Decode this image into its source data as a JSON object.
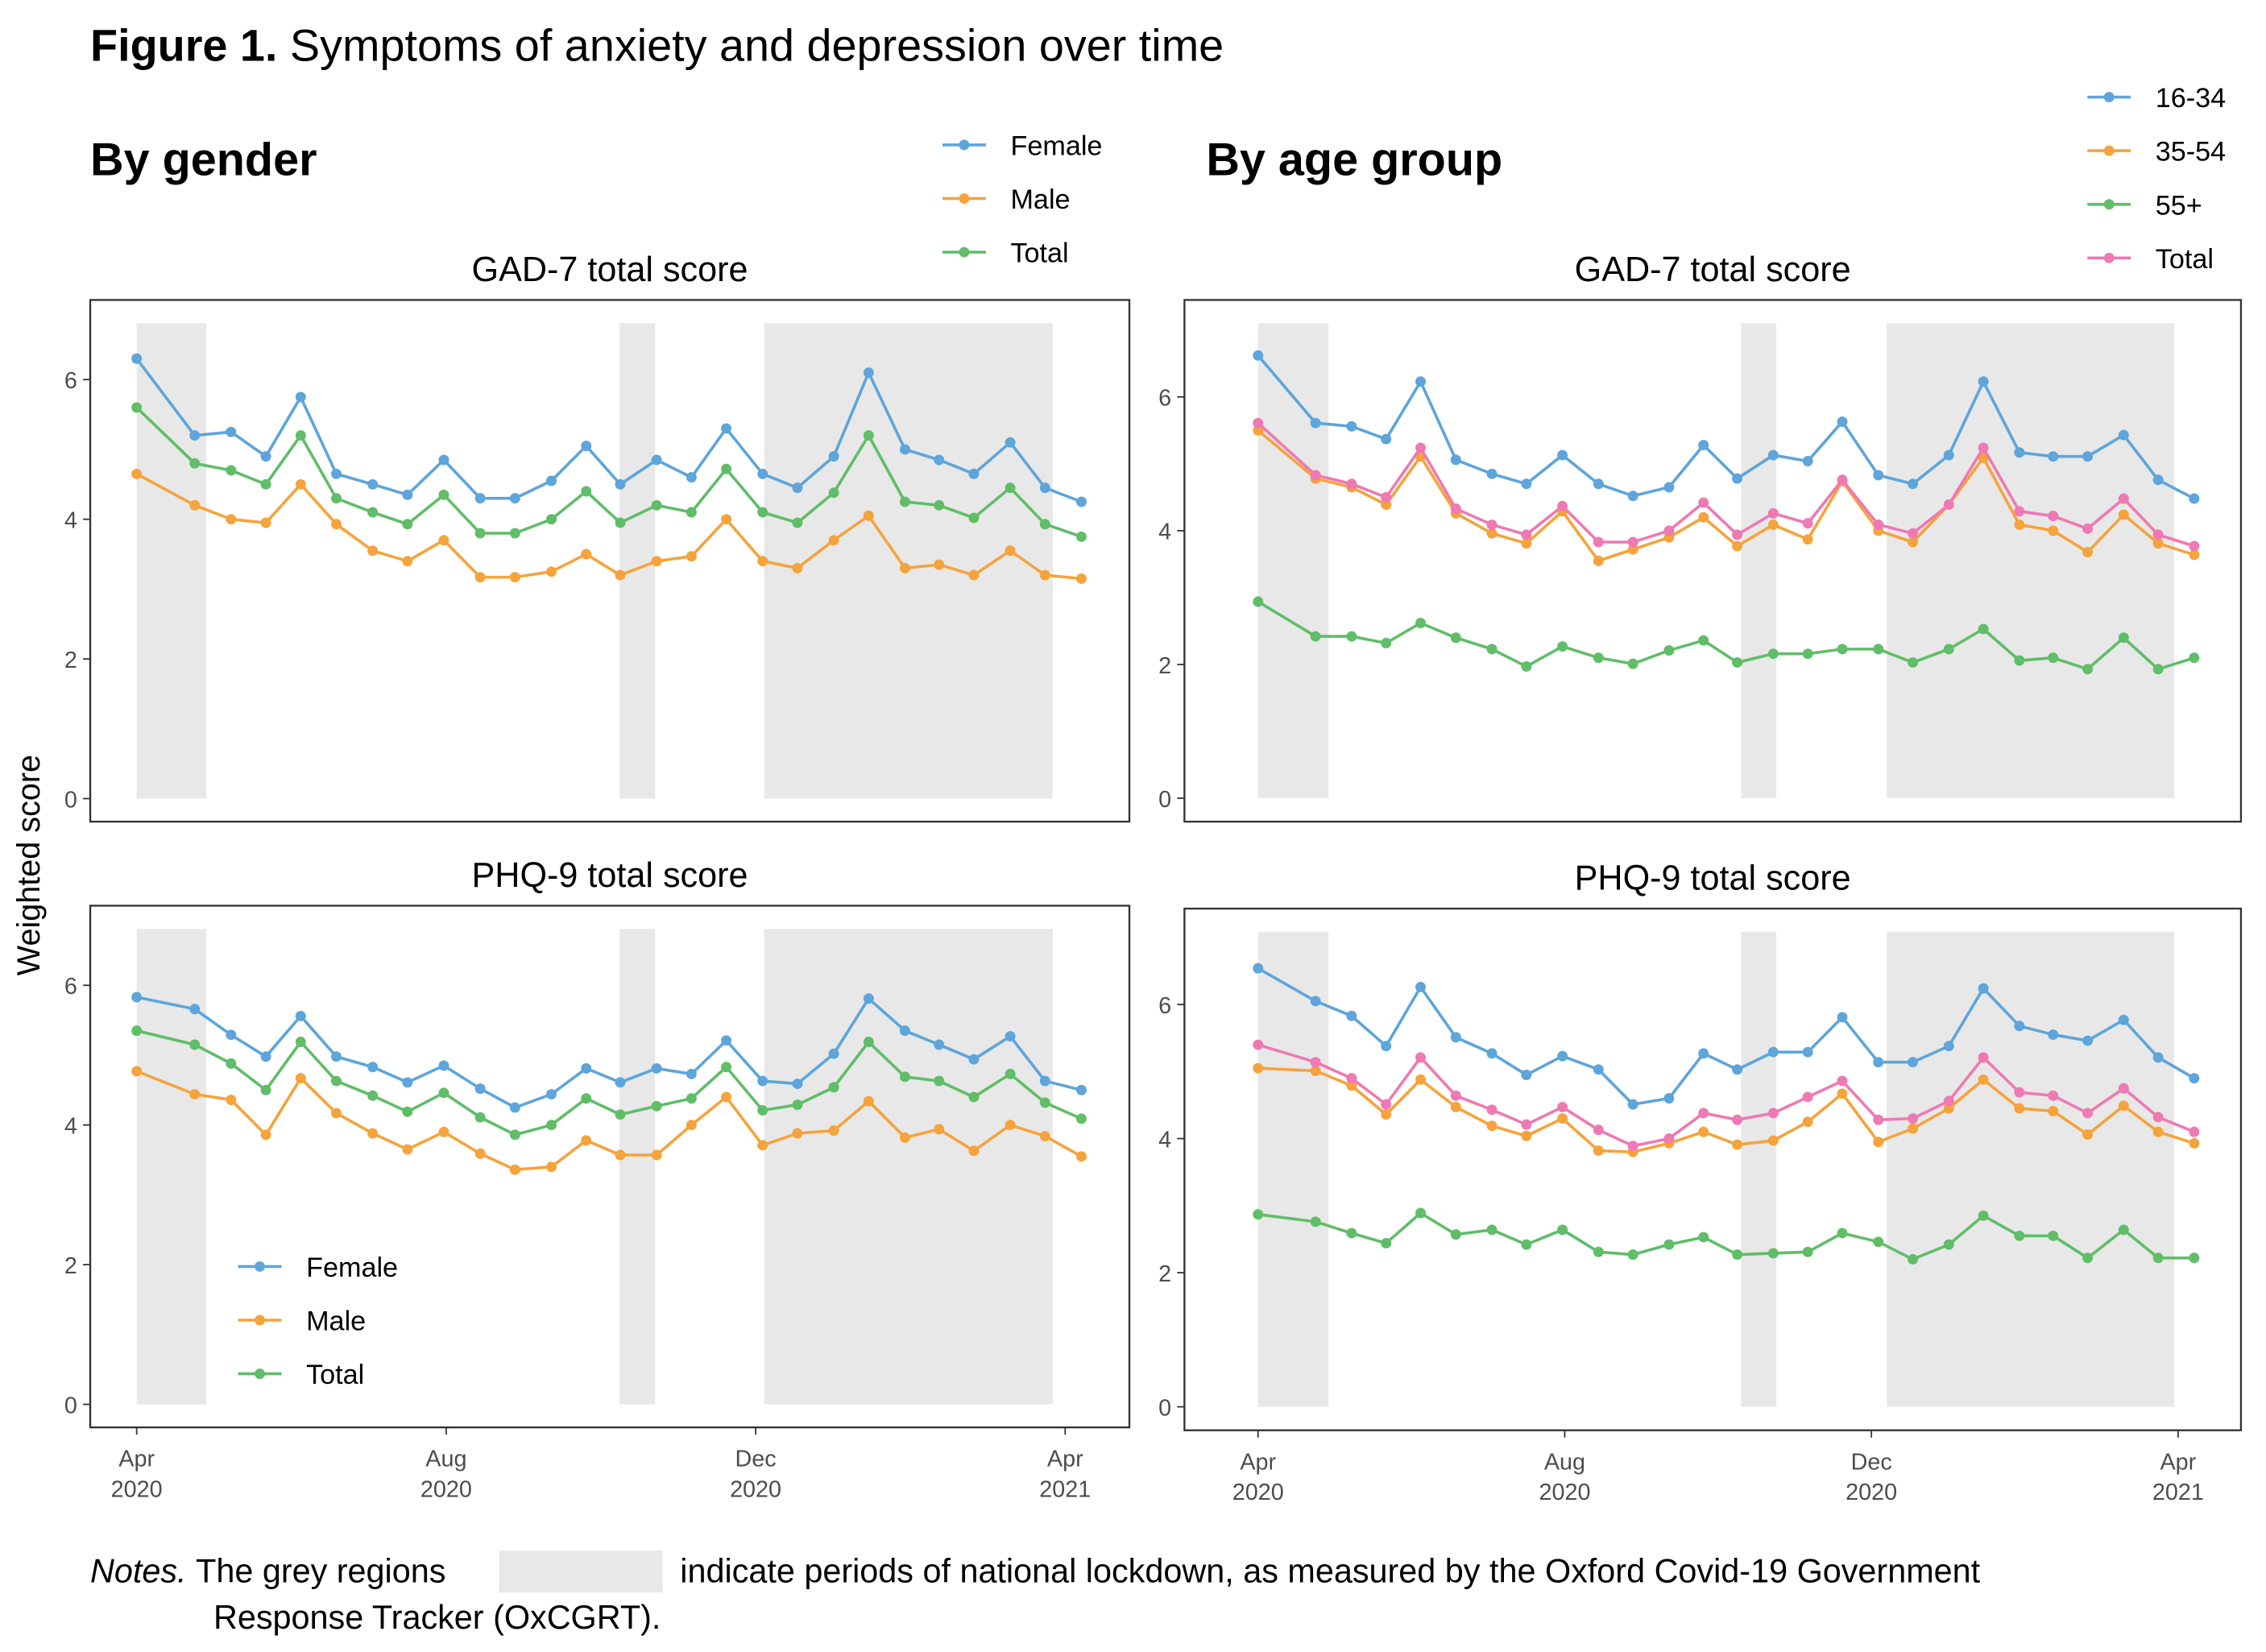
{
  "figure": {
    "label": "Figure 1.",
    "title": "Symptoms of anxiety and depression over time",
    "ylabel": "Weighted score"
  },
  "sections": [
    "By gender",
    "By age group"
  ],
  "notes": {
    "label": "Notes.",
    "before": "The grey regions",
    "after": "indicate periods of national lockdown, as measured by the Oxford Covid-19 Government",
    "line2": "Response Tracker (OxCGRT)."
  },
  "chart_data": [
    {
      "type": "line",
      "title": "GAD-7 total score",
      "legend": "top",
      "x": [
        0,
        0.75,
        1.22,
        1.67,
        2.12,
        2.58,
        3.05,
        3.5,
        3.97,
        4.44,
        4.89,
        5.36,
        5.81,
        6.25,
        6.72,
        7.17,
        7.62,
        8.09,
        8.54,
        9.01,
        9.46,
        9.93,
        10.37,
        10.82,
        11.29,
        11.74,
        12.21
      ],
      "xlim": [
        -0.6,
        12.83
      ],
      "ylim": [
        -0.33,
        7.14
      ],
      "yticks": [
        0,
        2,
        4,
        6
      ],
      "lockdowns": [
        [
          0,
          0.9
        ],
        [
          6.24,
          6.7
        ],
        [
          8.11,
          11.84
        ]
      ],
      "lockdown_color": "#e8e8e8",
      "series": [
        {
          "name": "Female",
          "color": "#5da5da",
          "values": [
            6.3,
            5.2,
            5.25,
            4.9,
            5.75,
            4.65,
            4.5,
            4.35,
            4.85,
            4.3,
            4.3,
            4.55,
            5.05,
            4.5,
            4.85,
            4.6,
            5.3,
            4.65,
            4.45,
            4.9,
            6.1,
            5.0,
            4.85,
            4.65,
            5.1,
            4.45,
            4.25
          ]
        },
        {
          "name": "Male",
          "color": "#f5a33c",
          "values": [
            4.65,
            4.2,
            4.0,
            3.95,
            4.5,
            3.93,
            3.55,
            3.4,
            3.7,
            3.17,
            3.17,
            3.25,
            3.5,
            3.2,
            3.4,
            3.47,
            4.0,
            3.4,
            3.3,
            3.7,
            4.05,
            3.3,
            3.35,
            3.2,
            3.55,
            3.2,
            3.15
          ]
        },
        {
          "name": "Total",
          "color": "#60bd68",
          "values": [
            5.6,
            4.8,
            4.7,
            4.5,
            5.2,
            4.3,
            4.1,
            3.93,
            4.35,
            3.8,
            3.8,
            4.0,
            4.4,
            3.95,
            4.2,
            4.1,
            4.72,
            4.1,
            3.95,
            4.38,
            5.2,
            4.25,
            4.2,
            4.02,
            4.45,
            3.93,
            3.75
          ]
        }
      ]
    },
    {
      "type": "line",
      "title": "PHQ-9 total score",
      "legend": "bottom-left",
      "x": [
        0,
        0.75,
        1.22,
        1.67,
        2.12,
        2.58,
        3.05,
        3.5,
        3.97,
        4.44,
        4.89,
        5.36,
        5.81,
        6.25,
        6.72,
        7.17,
        7.62,
        8.09,
        8.54,
        9.01,
        9.46,
        9.93,
        10.37,
        10.82,
        11.29,
        11.74,
        12.21
      ],
      "xlim": [
        -0.6,
        12.83
      ],
      "ylim": [
        -0.33,
        7.14
      ],
      "yticks": [
        0,
        2,
        4,
        6
      ],
      "xticks": [
        {
          "value": 0,
          "label": "Apr 2020"
        },
        {
          "value": 4,
          "label": "Aug 2020"
        },
        {
          "value": 8,
          "label": "Dec 2020"
        },
        {
          "value": 12,
          "label": "Apr 2021"
        }
      ],
      "lockdowns": [
        [
          0,
          0.9
        ],
        [
          6.24,
          6.7
        ],
        [
          8.11,
          11.84
        ]
      ],
      "lockdown_color": "#e8e8e8",
      "series": [
        {
          "name": "Female",
          "color": "#5da5da",
          "values": [
            5.83,
            5.66,
            5.29,
            4.98,
            5.56,
            4.98,
            4.83,
            4.61,
            4.85,
            4.52,
            4.25,
            4.44,
            4.81,
            4.61,
            4.81,
            4.73,
            5.21,
            4.63,
            4.59,
            5.02,
            5.81,
            5.35,
            5.15,
            4.94,
            5.27,
            4.63,
            4.5
          ]
        },
        {
          "name": "Male",
          "color": "#f5a33c",
          "values": [
            4.77,
            4.44,
            4.36,
            3.86,
            4.67,
            4.17,
            3.88,
            3.65,
            3.9,
            3.59,
            3.36,
            3.4,
            3.78,
            3.57,
            3.57,
            4.0,
            4.4,
            3.71,
            3.88,
            3.92,
            4.34,
            3.82,
            3.94,
            3.63,
            4.0,
            3.84,
            3.55
          ]
        },
        {
          "name": "Total",
          "color": "#60bd68",
          "values": [
            5.35,
            5.15,
            4.88,
            4.5,
            5.19,
            4.63,
            4.42,
            4.19,
            4.46,
            4.11,
            3.86,
            4.0,
            4.38,
            4.15,
            4.27,
            4.38,
            4.83,
            4.21,
            4.29,
            4.54,
            5.19,
            4.69,
            4.63,
            4.4,
            4.73,
            4.32,
            4.09
          ]
        }
      ]
    },
    {
      "type": "line",
      "title": "GAD-7 total score",
      "legend": "top",
      "x": [
        0,
        0.75,
        1.22,
        1.67,
        2.12,
        2.58,
        3.05,
        3.5,
        3.97,
        4.44,
        4.89,
        5.36,
        5.81,
        6.25,
        6.72,
        7.17,
        7.62,
        8.09,
        8.54,
        9.01,
        9.46,
        9.93,
        10.37,
        10.82,
        11.29,
        11.74,
        12.21
      ],
      "xlim": [
        -0.96,
        12.82
      ],
      "ylim": [
        -0.35,
        7.45
      ],
      "yticks": [
        0,
        2,
        4,
        6
      ],
      "lockdowns": [
        [
          0,
          0.92
        ],
        [
          6.3,
          6.76
        ],
        [
          8.2,
          11.95
        ]
      ],
      "lockdown_color": "#e8e8e8",
      "series": [
        {
          "name": "16-34",
          "color": "#5da5da",
          "values": [
            6.62,
            5.61,
            5.56,
            5.37,
            6.23,
            5.06,
            4.85,
            4.7,
            5.13,
            4.7,
            4.52,
            4.65,
            5.28,
            4.78,
            5.13,
            5.04,
            5.63,
            4.83,
            4.7,
            5.13,
            6.23,
            5.17,
            5.11,
            5.11,
            5.43,
            4.76,
            4.48
          ]
        },
        {
          "name": "35-54",
          "color": "#f5a33c",
          "values": [
            5.5,
            4.78,
            4.65,
            4.39,
            5.11,
            4.26,
            3.96,
            3.81,
            4.29,
            3.55,
            3.72,
            3.9,
            4.2,
            3.77,
            4.09,
            3.87,
            4.74,
            4.0,
            3.83,
            4.39,
            5.09,
            4.09,
            4.0,
            3.68,
            4.24,
            3.81,
            3.64
          ]
        },
        {
          "name": "55+",
          "color": "#60bd68",
          "values": [
            2.94,
            2.42,
            2.42,
            2.32,
            2.62,
            2.4,
            2.23,
            1.97,
            2.27,
            2.1,
            2.01,
            2.21,
            2.36,
            2.03,
            2.16,
            2.16,
            2.23,
            2.23,
            2.03,
            2.23,
            2.53,
            2.06,
            2.1,
            1.93,
            2.4,
            1.93,
            2.1
          ]
        },
        {
          "name": "Total",
          "color": "#ef79b2",
          "values": [
            5.61,
            4.83,
            4.7,
            4.5,
            5.24,
            4.33,
            4.09,
            3.94,
            4.37,
            3.83,
            3.83,
            4.0,
            4.42,
            3.94,
            4.26,
            4.11,
            4.76,
            4.09,
            3.96,
            4.39,
            5.24,
            4.29,
            4.22,
            4.03,
            4.48,
            3.94,
            3.77
          ]
        }
      ]
    },
    {
      "type": "line",
      "title": "PHQ-9 total score",
      "x": [
        0,
        0.75,
        1.22,
        1.67,
        2.12,
        2.58,
        3.05,
        3.5,
        3.97,
        4.44,
        4.89,
        5.36,
        5.81,
        6.25,
        6.72,
        7.17,
        7.62,
        8.09,
        8.54,
        9.01,
        9.46,
        9.93,
        10.37,
        10.82,
        11.29,
        11.74,
        12.21
      ],
      "xlim": [
        -0.96,
        12.82
      ],
      "ylim": [
        -0.35,
        7.43
      ],
      "yticks": [
        0,
        2,
        4,
        6
      ],
      "xticks": [
        {
          "value": 0,
          "label": "Apr 2020"
        },
        {
          "value": 4,
          "label": "Aug 2020"
        },
        {
          "value": 8,
          "label": "Dec 2020"
        },
        {
          "value": 12,
          "label": "Apr 2021"
        }
      ],
      "lockdowns": [
        [
          0,
          0.92
        ],
        [
          6.3,
          6.76
        ],
        [
          8.2,
          11.95
        ]
      ],
      "lockdown_color": "#e8e8e8",
      "series": [
        {
          "name": "16-34",
          "color": "#5da5da",
          "values": [
            6.54,
            6.05,
            5.83,
            5.38,
            6.26,
            5.51,
            5.27,
            4.95,
            5.23,
            5.03,
            4.51,
            4.6,
            5.27,
            5.03,
            5.29,
            5.29,
            5.81,
            5.14,
            5.14,
            5.38,
            6.24,
            5.68,
            5.55,
            5.46,
            5.77,
            5.21,
            4.9
          ]
        },
        {
          "name": "35-54",
          "color": "#f5a33c",
          "values": [
            5.05,
            5.01,
            4.79,
            4.36,
            4.88,
            4.47,
            4.19,
            4.04,
            4.3,
            3.82,
            3.8,
            3.93,
            4.1,
            3.91,
            3.97,
            4.25,
            4.67,
            3.95,
            4.15,
            4.45,
            4.88,
            4.45,
            4.41,
            4.06,
            4.49,
            4.1,
            3.93
          ]
        },
        {
          "name": "55+",
          "color": "#60bd68",
          "values": [
            2.87,
            2.76,
            2.59,
            2.44,
            2.89,
            2.57,
            2.64,
            2.42,
            2.64,
            2.31,
            2.27,
            2.42,
            2.53,
            2.27,
            2.29,
            2.31,
            2.59,
            2.46,
            2.2,
            2.42,
            2.85,
            2.55,
            2.55,
            2.22,
            2.64,
            2.22,
            2.22
          ]
        },
        {
          "name": "Total",
          "color": "#ef79b2",
          "values": [
            5.4,
            5.14,
            4.9,
            4.51,
            5.21,
            4.64,
            4.43,
            4.21,
            4.47,
            4.13,
            3.89,
            4.0,
            4.38,
            4.28,
            4.38,
            4.62,
            4.86,
            4.28,
            4.3,
            4.56,
            5.21,
            4.69,
            4.64,
            4.38,
            4.75,
            4.32,
            4.1
          ]
        }
      ]
    }
  ]
}
